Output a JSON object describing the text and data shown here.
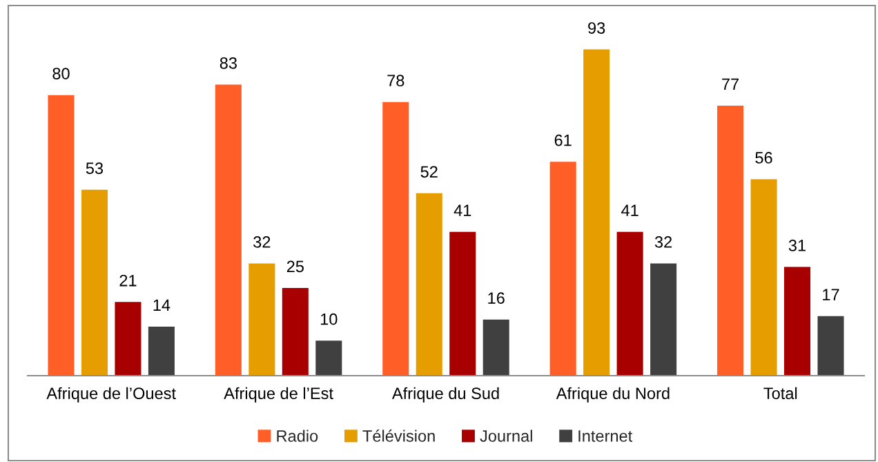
{
  "chart_data": {
    "type": "bar",
    "categories": [
      "Afrique de l’Ouest",
      "Afrique de l’Est",
      "Afrique du Sud",
      "Afrique du Nord",
      "Total"
    ],
    "series": [
      {
        "name": "Radio",
        "color": "#ff5e26",
        "values": [
          80,
          83,
          78,
          61,
          77
        ]
      },
      {
        "name": "Télévision",
        "color": "#e69d00",
        "values": [
          53,
          32,
          52,
          93,
          56
        ]
      },
      {
        "name": "Journal",
        "color": "#a80000",
        "values": [
          21,
          25,
          41,
          41,
          31
        ]
      },
      {
        "name": "Internet",
        "color": "#404040",
        "values": [
          14,
          10,
          16,
          32,
          17
        ]
      }
    ],
    "data_labels": true,
    "tick_labels": "x",
    "grid": false,
    "legend": "bottom"
  }
}
